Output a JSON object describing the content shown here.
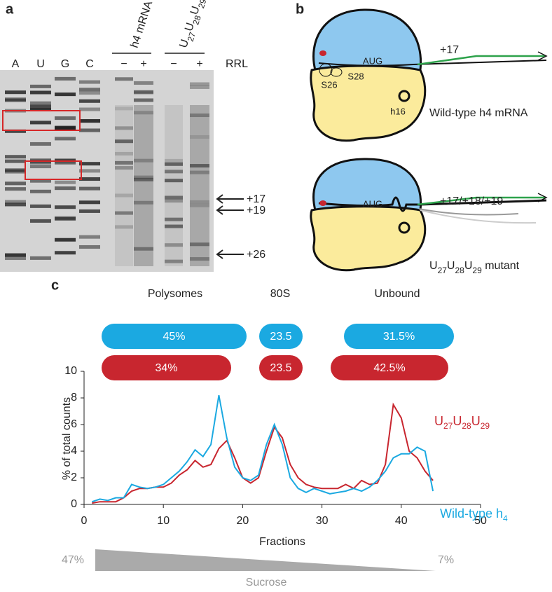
{
  "panel_a": {
    "label": "a",
    "lanes": [
      "A",
      "U",
      "G",
      "C"
    ],
    "groups": [
      {
        "name": "h4 mRNA",
        "signs": [
          "−",
          "+"
        ]
      },
      {
        "name": "U27U28U29",
        "signs": [
          "−",
          "+"
        ]
      }
    ],
    "reagent": "RRL",
    "markers": [
      "+17",
      "+19",
      "+26"
    ]
  },
  "panel_b": {
    "label": "b",
    "wild_type": {
      "position": "+17",
      "codon": "AUG",
      "sites": [
        "S26",
        "S28",
        "h16"
      ],
      "caption": "Wild-type h4 mRNA"
    },
    "mutant": {
      "position": "+17/+18/+19",
      "codon": "AUG",
      "caption": "U27U28U29 mutant"
    }
  },
  "panel_c": {
    "label": "c",
    "distribution": {
      "categories": [
        "Polysomes",
        "80S",
        "Unbound"
      ],
      "series": [
        {
          "color": "#1ba9e1",
          "values": [
            45,
            23.5,
            31.5
          ],
          "value_labels": [
            "45%",
            "23.5",
            "31.5%"
          ]
        },
        {
          "color": "#c8262f",
          "values": [
            34,
            23.5,
            42.5
          ],
          "value_labels": [
            "34%",
            "23.5",
            "42.5%"
          ]
        }
      ]
    },
    "gradient": {
      "start": "47%",
      "end": "7%",
      "label": "Sucrose"
    }
  },
  "chart_data": {
    "type": "line",
    "xlabel": "Fractions",
    "ylabel": "% of total counts",
    "xlim": [
      0,
      50
    ],
    "xticks": [
      0,
      10,
      20,
      30,
      40,
      50
    ],
    "ylim": [
      0,
      10
    ],
    "yticks": [
      0,
      2,
      4,
      6,
      8,
      10
    ],
    "x": [
      1,
      2,
      3,
      4,
      5,
      6,
      7,
      8,
      9,
      10,
      11,
      12,
      13,
      14,
      15,
      16,
      17,
      18,
      19,
      20,
      21,
      22,
      23,
      24,
      25,
      26,
      27,
      28,
      29,
      30,
      31,
      32,
      33,
      34,
      35,
      36,
      37,
      38,
      39,
      40,
      41,
      42,
      43,
      44
    ],
    "series": [
      {
        "name": "U27U28U29",
        "color": "#c8262f",
        "values": [
          0.1,
          0.2,
          0.2,
          0.2,
          0.5,
          1.0,
          1.2,
          1.2,
          1.3,
          1.3,
          1.6,
          2.2,
          2.6,
          3.3,
          2.8,
          3.0,
          4.2,
          4.8,
          3.5,
          2.0,
          1.6,
          2.0,
          4.0,
          5.8,
          5.0,
          3.0,
          2.0,
          1.5,
          1.3,
          1.2,
          1.2,
          1.2,
          1.5,
          1.2,
          1.8,
          1.5,
          1.6,
          3.0,
          7.5,
          6.5,
          4.0,
          3.5,
          2.5,
          1.8
        ]
      },
      {
        "name": "Wild-type h4",
        "color": "#1ba9e1",
        "values": [
          0.2,
          0.4,
          0.3,
          0.5,
          0.5,
          1.5,
          1.3,
          1.2,
          1.3,
          1.5,
          2.0,
          2.5,
          3.2,
          4.1,
          3.6,
          4.5,
          8.2,
          5.0,
          2.8,
          2.0,
          1.8,
          2.2,
          4.5,
          6.0,
          4.5,
          2.0,
          1.2,
          0.9,
          1.2,
          1.0,
          0.8,
          0.9,
          1.0,
          1.2,
          1.0,
          1.3,
          1.8,
          2.5,
          3.5,
          3.8,
          3.8,
          4.3,
          4.0,
          1.0
        ]
      }
    ]
  }
}
